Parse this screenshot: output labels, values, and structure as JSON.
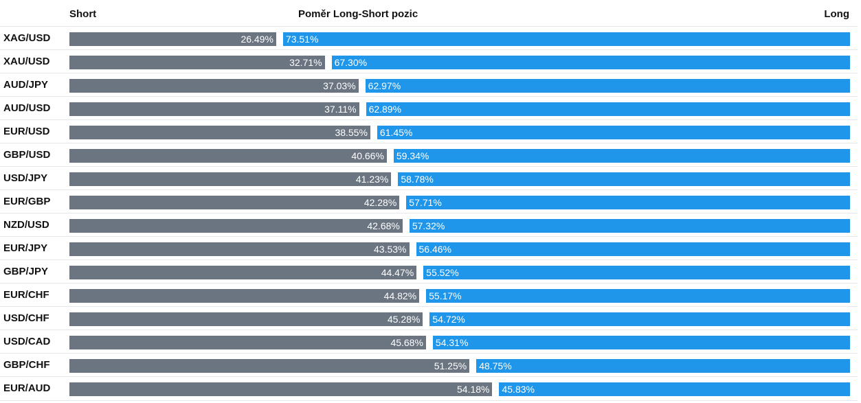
{
  "header": {
    "short_label": "Short",
    "title": "Poměr Long-Short pozic",
    "long_label": "Long"
  },
  "colors": {
    "short": "#6b7582",
    "long": "#1f96ea"
  },
  "chart_data": {
    "type": "bar",
    "orientation": "horizontal-stacked",
    "title": "Poměr Long-Short pozic",
    "legend": [
      "Short",
      "Long"
    ],
    "categories": [
      "XAG/USD",
      "XAU/USD",
      "AUD/JPY",
      "AUD/USD",
      "EUR/USD",
      "GBP/USD",
      "USD/JPY",
      "EUR/GBP",
      "NZD/USD",
      "EUR/JPY",
      "GBP/JPY",
      "EUR/CHF",
      "USD/CHF",
      "USD/CAD",
      "GBP/CHF",
      "EUR/AUD"
    ],
    "series": [
      {
        "name": "Short",
        "values": [
          26.49,
          32.71,
          37.03,
          37.11,
          38.55,
          40.66,
          41.23,
          42.28,
          42.68,
          43.53,
          44.47,
          44.82,
          45.28,
          45.68,
          51.25,
          54.18
        ]
      },
      {
        "name": "Long",
        "values": [
          73.51,
          67.3,
          62.97,
          62.89,
          61.45,
          59.34,
          58.78,
          57.71,
          57.32,
          56.46,
          55.52,
          55.17,
          54.72,
          54.31,
          48.75,
          45.83
        ]
      }
    ],
    "value_labels_short": [
      "26.49%",
      "32.71%",
      "37.03%",
      "37.11%",
      "38.55%",
      "40.66%",
      "41.23%",
      "42.28%",
      "42.68%",
      "43.53%",
      "44.47%",
      "44.82%",
      "45.28%",
      "45.68%",
      "51.25%",
      "54.18%"
    ],
    "value_labels_long": [
      "73.51%",
      "67.30%",
      "62.97%",
      "62.89%",
      "61.45%",
      "59.34%",
      "58.78%",
      "57.71%",
      "57.32%",
      "56.46%",
      "55.52%",
      "55.17%",
      "54.72%",
      "54.31%",
      "48.75%",
      "45.83%"
    ],
    "xlim": [
      0,
      100
    ]
  }
}
